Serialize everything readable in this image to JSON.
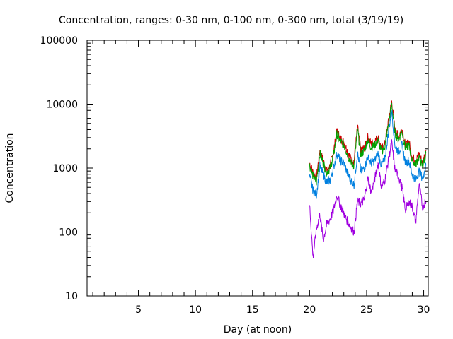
{
  "chart_data": {
    "type": "line",
    "title": "Concentration, ranges: 0-30 nm, 0-100 nm, 0-300 nm, total (3/19/19)",
    "xlabel": "Day (at noon)",
    "ylabel": "Concentration",
    "xlim": [
      0.5,
      30.4
    ],
    "ylim": [
      10,
      100000
    ],
    "yscale": "log",
    "x_ticks": [
      5,
      10,
      15,
      20,
      25,
      30
    ],
    "y_ticks": [
      10,
      100,
      1000,
      10000,
      100000
    ],
    "y_tick_labels": [
      "10",
      "100",
      "1000",
      "10000",
      "100000"
    ],
    "grid": false,
    "legend": "none",
    "series": [
      {
        "color": "#cc0000",
        "x": [
          20.0,
          20.3,
          20.6,
          20.9,
          21.2,
          21.5,
          21.8,
          22.1,
          22.4,
          22.7,
          23.0,
          23.3,
          23.6,
          23.9,
          24.2,
          24.5,
          24.8,
          25.1,
          25.4,
          25.7,
          26.0,
          26.3,
          26.6,
          26.9,
          27.2,
          27.5,
          27.8,
          28.1,
          28.4,
          28.7,
          29.0,
          29.3,
          29.6,
          29.9,
          30.2
        ],
        "y": [
          1200,
          850,
          700,
          1900,
          1300,
          900,
          1100,
          1800,
          3800,
          2900,
          2600,
          1900,
          1400,
          1300,
          4400,
          1800,
          2100,
          3000,
          2400,
          2600,
          3100,
          2000,
          2400,
          5200,
          11000,
          3800,
          3100,
          4200,
          2200,
          2600,
          1500,
          1300,
          1700,
          1200,
          1900
        ]
      },
      {
        "color": "#00a000",
        "x": [
          20.0,
          20.3,
          20.6,
          20.9,
          21.2,
          21.5,
          21.8,
          22.1,
          22.4,
          22.7,
          23.0,
          23.3,
          23.6,
          23.9,
          24.2,
          24.5,
          24.8,
          25.1,
          25.4,
          25.7,
          26.0,
          26.3,
          26.6,
          26.9,
          27.2,
          27.5,
          27.8,
          28.1,
          28.4,
          28.7,
          29.0,
          29.3,
          29.6,
          29.9,
          30.2
        ],
        "y": [
          1100,
          750,
          600,
          1700,
          1200,
          850,
          1000,
          1600,
          3400,
          2600,
          2300,
          1700,
          1200,
          1100,
          4000,
          1600,
          1900,
          2700,
          2100,
          2300,
          2800,
          1800,
          2200,
          4700,
          10000,
          3400,
          2800,
          3800,
          2000,
          2300,
          1300,
          1150,
          1500,
          1050,
          1700
        ]
      },
      {
        "color": "#0080e0",
        "x": [
          20.0,
          20.3,
          20.6,
          20.9,
          21.2,
          21.5,
          21.8,
          22.1,
          22.4,
          22.7,
          23.0,
          23.3,
          23.6,
          23.9,
          24.2,
          24.5,
          24.8,
          25.1,
          25.4,
          25.7,
          26.0,
          26.3,
          26.6,
          26.9,
          27.2,
          27.5,
          27.8,
          28.1,
          28.4,
          28.7,
          29.0,
          29.3,
          29.6,
          29.9,
          30.2
        ],
        "y": [
          750,
          450,
          380,
          1050,
          800,
          600,
          650,
          1000,
          1700,
          1300,
          1200,
          850,
          650,
          550,
          1700,
          900,
          1000,
          1500,
          1200,
          1300,
          1700,
          1100,
          1400,
          3500,
          8000,
          2200,
          1800,
          2300,
          1200,
          1300,
          800,
          650,
          900,
          700,
          1100
        ]
      },
      {
        "color": "#a000e0",
        "x": [
          20.0,
          20.3,
          20.6,
          20.9,
          21.2,
          21.5,
          21.8,
          22.1,
          22.4,
          22.7,
          23.0,
          23.3,
          23.6,
          23.9,
          24.2,
          24.5,
          24.8,
          25.1,
          25.4,
          25.7,
          26.0,
          26.3,
          26.6,
          26.9,
          27.2,
          27.5,
          27.8,
          28.1,
          28.4,
          28.7,
          29.0,
          29.3,
          29.6,
          29.9,
          30.2
        ],
        "y": [
          270,
          40,
          110,
          190,
          75,
          130,
          160,
          220,
          380,
          260,
          200,
          150,
          120,
          100,
          300,
          280,
          320,
          700,
          420,
          650,
          1200,
          500,
          650,
          1300,
          2500,
          900,
          750,
          500,
          220,
          300,
          250,
          140,
          550,
          250,
          300
        ]
      }
    ]
  }
}
